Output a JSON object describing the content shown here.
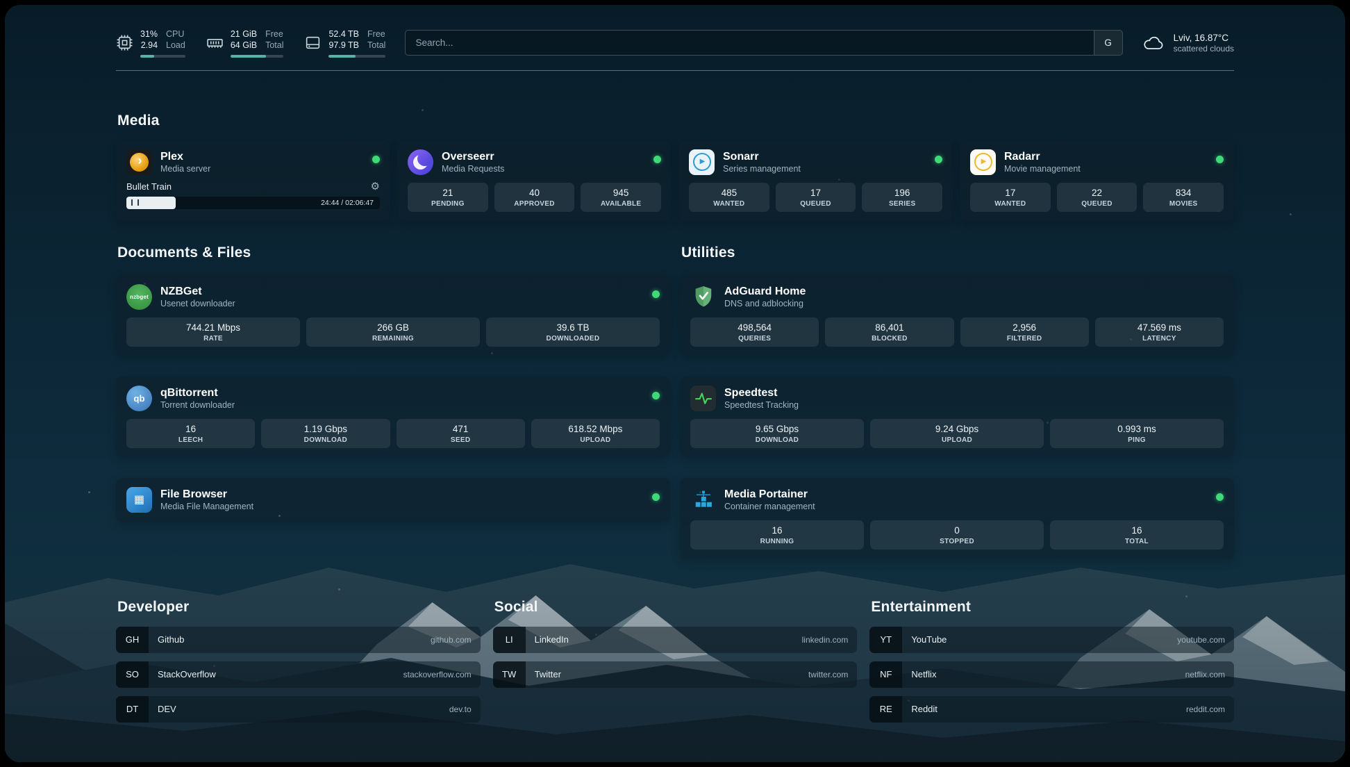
{
  "colors": {
    "status_online": "#3fd977",
    "progress_accent": "#57b3a6",
    "plex_brand": "#e5a00d",
    "overseerr_brand": "#5a4fd6",
    "sonarr_brand": "#2f9bd3",
    "radarr_brand": "#e9b932",
    "nzbget_brand": "#3d9c46",
    "qbittorrent_brand": "#3a72b8",
    "filebrowser_brand": "#2d84c9",
    "adguard_brand": "#67b279",
    "speedtest_brand": "#46d160",
    "portainer_brand": "#2aa7e0"
  },
  "icons": {
    "gear": "⚙",
    "play": "▶",
    "plex_chevron": "›",
    "nzbget_label": "nzbget",
    "qbittorrent_label": "qb",
    "filebrowser_glyph": "▦"
  },
  "topbar": {
    "cpu": {
      "value_top": "31%",
      "label_top": "CPU",
      "value_bottom": "2.94",
      "label_bottom": "Load",
      "bar_percent": 31
    },
    "memory": {
      "value_top": "21 GiB",
      "label_top": "Free",
      "value_bottom": "64 GiB",
      "label_bottom": "Total",
      "bar_percent": 67
    },
    "disk": {
      "value_top": "52.4 TB",
      "label_top": "Free",
      "value_bottom": "97.9 TB",
      "label_bottom": "Total",
      "bar_percent": 47
    },
    "search": {
      "placeholder": "Search...",
      "provider_button": "G"
    },
    "weather": {
      "location": "Lviv, 16.87°C",
      "condition": "scattered clouds"
    }
  },
  "media": {
    "heading": "Media",
    "plex": {
      "name": "Plex",
      "subtitle": "Media server",
      "player": {
        "title": "Bullet Train",
        "time": "24:44 / 02:06:47",
        "progress_percent": 19.5
      }
    },
    "overseerr": {
      "name": "Overseerr",
      "subtitle": "Media Requests",
      "stats": [
        {
          "value": "21",
          "label": "PENDING"
        },
        {
          "value": "40",
          "label": "APPROVED"
        },
        {
          "value": "945",
          "label": "AVAILABLE"
        }
      ]
    },
    "sonarr": {
      "name": "Sonarr",
      "subtitle": "Series management",
      "stats": [
        {
          "value": "485",
          "label": "WANTED"
        },
        {
          "value": "17",
          "label": "QUEUED"
        },
        {
          "value": "196",
          "label": "SERIES"
        }
      ]
    },
    "radarr": {
      "name": "Radarr",
      "subtitle": "Movie management",
      "stats": [
        {
          "value": "17",
          "label": "WANTED"
        },
        {
          "value": "22",
          "label": "QUEUED"
        },
        {
          "value": "834",
          "label": "MOVIES"
        }
      ]
    }
  },
  "documents": {
    "heading": "Documents & Files",
    "nzbget": {
      "name": "NZBGet",
      "subtitle": "Usenet downloader",
      "stats": [
        {
          "value": "744.21 Mbps",
          "label": "RATE"
        },
        {
          "value": "266 GB",
          "label": "REMAINING"
        },
        {
          "value": "39.6 TB",
          "label": "DOWNLOADED"
        }
      ]
    },
    "qbittorrent": {
      "name": "qBittorrent",
      "subtitle": "Torrent downloader",
      "stats": [
        {
          "value": "16",
          "label": "LEECH"
        },
        {
          "value": "1.19 Gbps",
          "label": "DOWNLOAD"
        },
        {
          "value": "471",
          "label": "SEED"
        },
        {
          "value": "618.52 Mbps",
          "label": "UPLOAD"
        }
      ]
    },
    "filebrowser": {
      "name": "File Browser",
      "subtitle": "Media File Management"
    }
  },
  "utilities": {
    "heading": "Utilities",
    "adguard": {
      "name": "AdGuard Home",
      "subtitle": "DNS and adblocking",
      "stats": [
        {
          "value": "498,564",
          "label": "QUERIES"
        },
        {
          "value": "86,401",
          "label": "BLOCKED"
        },
        {
          "value": "2,956",
          "label": "FILTERED"
        },
        {
          "value": "47.569 ms",
          "label": "LATENCY"
        }
      ]
    },
    "speedtest": {
      "name": "Speedtest",
      "subtitle": "Speedtest Tracking",
      "stats": [
        {
          "value": "9.65 Gbps",
          "label": "DOWNLOAD"
        },
        {
          "value": "9.24 Gbps",
          "label": "UPLOAD"
        },
        {
          "value": "0.993 ms",
          "label": "PING"
        }
      ]
    },
    "portainer": {
      "name": "Media Portainer",
      "subtitle": "Container management",
      "stats": [
        {
          "value": "16",
          "label": "RUNNING"
        },
        {
          "value": "0",
          "label": "STOPPED"
        },
        {
          "value": "16",
          "label": "TOTAL"
        }
      ]
    }
  },
  "bookmarks": {
    "developer": {
      "heading": "Developer",
      "items": [
        {
          "abbr": "GH",
          "name": "Github",
          "domain": "github.com"
        },
        {
          "abbr": "SO",
          "name": "StackOverflow",
          "domain": "stackoverflow.com"
        },
        {
          "abbr": "DT",
          "name": "DEV",
          "domain": "dev.to"
        }
      ]
    },
    "social": {
      "heading": "Social",
      "items": [
        {
          "abbr": "LI",
          "name": "LinkedIn",
          "domain": "linkedin.com"
        },
        {
          "abbr": "TW",
          "name": "Twitter",
          "domain": "twitter.com"
        }
      ]
    },
    "entertainment": {
      "heading": "Entertainment",
      "items": [
        {
          "abbr": "YT",
          "name": "YouTube",
          "domain": "youtube.com"
        },
        {
          "abbr": "NF",
          "name": "Netflix",
          "domain": "netflix.com"
        },
        {
          "abbr": "RE",
          "name": "Reddit",
          "domain": "reddit.com"
        }
      ]
    }
  }
}
